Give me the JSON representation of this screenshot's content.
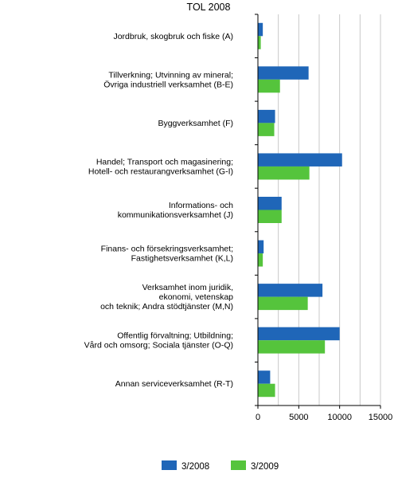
{
  "chart_data": {
    "type": "bar",
    "orientation": "horizontal",
    "title": "TOL 2008",
    "xlim": [
      0,
      15000
    ],
    "xticks": [
      0,
      5000,
      10000,
      15000
    ],
    "grid": true,
    "legend_position": "bottom",
    "categories": [
      [
        "Jordbruk, skogbruk och fiske (A)"
      ],
      [
        "Tillverkning; Utvinning av mineral;",
        "Övriga industriell verksamhet (B-E)"
      ],
      [
        "Byggverksamhet (F)"
      ],
      [
        "Handel; Transport och magasinering;",
        "Hotell- och restaurangverksamhet (G-I)"
      ],
      [
        "Informations- och",
        "kommunikationsverksamhet (J)"
      ],
      [
        "Finans- och försekringsverksamhet;",
        "Fastighetsverksamhet (K,L)"
      ],
      [
        "Verksamhet inom juridik,",
        "ekonomi, vetenskap",
        "och teknik; Andra stödtjänster (M,N)"
      ],
      [
        "Offentlig förvaltning; Utbildning;",
        "Vård och omsorg; Sociala tjänster (O-Q)"
      ],
      [
        "Annan serviceverksamhet (R-T)"
      ]
    ],
    "series": [
      {
        "name": "3/2008",
        "color": "#1f66b8",
        "values": [
          600,
          6200,
          2100,
          10300,
          2900,
          700,
          7900,
          10000,
          1500
        ]
      },
      {
        "name": "3/2009",
        "color": "#55c43c",
        "values": [
          350,
          2700,
          2000,
          6300,
          2900,
          600,
          6100,
          8200,
          2100
        ]
      }
    ]
  }
}
